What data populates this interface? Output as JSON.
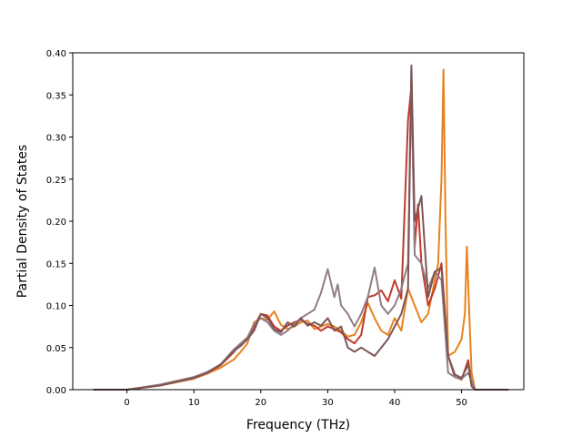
{
  "chart_data": {
    "type": "line",
    "xlabel": "Frequency (THz)",
    "ylabel": "Partial Density of States",
    "xlim": [
      -8.1,
      59.3
    ],
    "ylim": [
      0,
      0.4
    ],
    "xticks": [
      "0",
      "10",
      "20",
      "30",
      "40",
      "50"
    ],
    "xtick_values": [
      0,
      10,
      20,
      30,
      40,
      50
    ],
    "yticks": [
      "0.00",
      "0.05",
      "0.10",
      "0.15",
      "0.20",
      "0.25",
      "0.30",
      "0.35",
      "0.40"
    ],
    "ytick_values": [
      0,
      0.05,
      0.1,
      0.15,
      0.2,
      0.25,
      0.3,
      0.35,
      0.4
    ],
    "grid": false,
    "series": [
      {
        "color": "#e8821e",
        "points": [
          [
            -5,
            0
          ],
          [
            0,
            0
          ],
          [
            5,
            0.005
          ],
          [
            10,
            0.013
          ],
          [
            12,
            0.019
          ],
          [
            14,
            0.026
          ],
          [
            16,
            0.036
          ],
          [
            17,
            0.045
          ],
          [
            18,
            0.055
          ],
          [
            19,
            0.08
          ],
          [
            20,
            0.085
          ],
          [
            21,
            0.083
          ],
          [
            22,
            0.093
          ],
          [
            23,
            0.077
          ],
          [
            24,
            0.072
          ],
          [
            25,
            0.075
          ],
          [
            26,
            0.08
          ],
          [
            27,
            0.082
          ],
          [
            28,
            0.072
          ],
          [
            29,
            0.075
          ],
          [
            30,
            0.078
          ],
          [
            31,
            0.075
          ],
          [
            32,
            0.07
          ],
          [
            33,
            0.063
          ],
          [
            34,
            0.065
          ],
          [
            35,
            0.08
          ],
          [
            36,
            0.103
          ],
          [
            37,
            0.085
          ],
          [
            38,
            0.07
          ],
          [
            39,
            0.065
          ],
          [
            40,
            0.085
          ],
          [
            41,
            0.07
          ],
          [
            42,
            0.12
          ],
          [
            43,
            0.1
          ],
          [
            44,
            0.08
          ],
          [
            45,
            0.09
          ],
          [
            46,
            0.13
          ],
          [
            46.5,
            0.15
          ],
          [
            47,
            0.25
          ],
          [
            47.3,
            0.38
          ],
          [
            47.6,
            0.2
          ],
          [
            48,
            0.04
          ],
          [
            49,
            0.045
          ],
          [
            50,
            0.06
          ],
          [
            50.5,
            0.09
          ],
          [
            50.8,
            0.17
          ],
          [
            51.2,
            0.08
          ],
          [
            51.5,
            0.02
          ],
          [
            52,
            0
          ],
          [
            57,
            0
          ]
        ]
      },
      {
        "color": "#c0392b",
        "points": [
          [
            -5,
            0
          ],
          [
            0,
            0
          ],
          [
            5,
            0.005
          ],
          [
            10,
            0.014
          ],
          [
            12,
            0.02
          ],
          [
            14,
            0.029
          ],
          [
            16,
            0.045
          ],
          [
            17,
            0.055
          ],
          [
            18,
            0.06
          ],
          [
            19,
            0.075
          ],
          [
            20,
            0.09
          ],
          [
            21,
            0.088
          ],
          [
            22,
            0.075
          ],
          [
            23,
            0.07
          ],
          [
            24,
            0.076
          ],
          [
            25,
            0.08
          ],
          [
            26,
            0.083
          ],
          [
            27,
            0.078
          ],
          [
            28,
            0.076
          ],
          [
            29,
            0.07
          ],
          [
            30,
            0.075
          ],
          [
            31,
            0.072
          ],
          [
            32,
            0.068
          ],
          [
            33,
            0.06
          ],
          [
            34,
            0.055
          ],
          [
            35,
            0.065
          ],
          [
            36,
            0.11
          ],
          [
            37,
            0.112
          ],
          [
            38,
            0.118
          ],
          [
            39,
            0.105
          ],
          [
            40,
            0.13
          ],
          [
            41,
            0.108
          ],
          [
            42,
            0.32
          ],
          [
            42.5,
            0.36
          ],
          [
            43,
            0.17
          ],
          [
            43.5,
            0.22
          ],
          [
            44,
            0.15
          ],
          [
            45,
            0.1
          ],
          [
            46,
            0.12
          ],
          [
            47,
            0.15
          ],
          [
            48,
            0.04
          ],
          [
            49,
            0.015
          ],
          [
            50,
            0.012
          ],
          [
            51,
            0.035
          ],
          [
            51.5,
            0.005
          ],
          [
            52,
            0
          ],
          [
            57,
            0
          ]
        ]
      },
      {
        "color": "#8f7d85",
        "points": [
          [
            -5,
            0
          ],
          [
            0,
            0
          ],
          [
            5,
            0.006
          ],
          [
            10,
            0.015
          ],
          [
            12,
            0.021
          ],
          [
            14,
            0.03
          ],
          [
            16,
            0.048
          ],
          [
            17,
            0.055
          ],
          [
            18,
            0.062
          ],
          [
            19,
            0.078
          ],
          [
            20,
            0.085
          ],
          [
            21,
            0.08
          ],
          [
            22,
            0.07
          ],
          [
            23,
            0.065
          ],
          [
            24,
            0.07
          ],
          [
            25,
            0.078
          ],
          [
            26,
            0.085
          ],
          [
            27,
            0.09
          ],
          [
            28,
            0.095
          ],
          [
            29,
            0.115
          ],
          [
            30,
            0.143
          ],
          [
            31,
            0.11
          ],
          [
            31.5,
            0.125
          ],
          [
            32,
            0.1
          ],
          [
            33,
            0.09
          ],
          [
            34,
            0.075
          ],
          [
            35,
            0.09
          ],
          [
            36,
            0.11
          ],
          [
            37,
            0.145
          ],
          [
            38,
            0.1
          ],
          [
            39,
            0.09
          ],
          [
            40,
            0.1
          ],
          [
            41,
            0.12
          ],
          [
            42,
            0.15
          ],
          [
            42.5,
            0.38
          ],
          [
            43,
            0.16
          ],
          [
            44,
            0.15
          ],
          [
            45,
            0.12
          ],
          [
            46,
            0.14
          ],
          [
            47,
            0.13
          ],
          [
            48,
            0.02
          ],
          [
            49,
            0.015
          ],
          [
            50,
            0.013
          ],
          [
            51,
            0.02
          ],
          [
            52,
            0
          ],
          [
            57,
            0
          ]
        ]
      },
      {
        "color": "#7d5656",
        "points": [
          [
            -5,
            0
          ],
          [
            0,
            0
          ],
          [
            5,
            0.005
          ],
          [
            10,
            0.014
          ],
          [
            12,
            0.02
          ],
          [
            14,
            0.03
          ],
          [
            16,
            0.046
          ],
          [
            17,
            0.052
          ],
          [
            18,
            0.06
          ],
          [
            19,
            0.07
          ],
          [
            20,
            0.09
          ],
          [
            21,
            0.085
          ],
          [
            22,
            0.072
          ],
          [
            23,
            0.068
          ],
          [
            24,
            0.08
          ],
          [
            25,
            0.075
          ],
          [
            26,
            0.085
          ],
          [
            27,
            0.076
          ],
          [
            28,
            0.08
          ],
          [
            29,
            0.076
          ],
          [
            30,
            0.085
          ],
          [
            31,
            0.07
          ],
          [
            32,
            0.075
          ],
          [
            33,
            0.05
          ],
          [
            34,
            0.045
          ],
          [
            35,
            0.05
          ],
          [
            36,
            0.045
          ],
          [
            37,
            0.04
          ],
          [
            38,
            0.05
          ],
          [
            39,
            0.06
          ],
          [
            40,
            0.075
          ],
          [
            41,
            0.09
          ],
          [
            42,
            0.12
          ],
          [
            42.5,
            0.385
          ],
          [
            43,
            0.2
          ],
          [
            44,
            0.23
          ],
          [
            45,
            0.11
          ],
          [
            46,
            0.14
          ],
          [
            47,
            0.145
          ],
          [
            48,
            0.04
          ],
          [
            49,
            0.018
          ],
          [
            50,
            0.014
          ],
          [
            51,
            0.03
          ],
          [
            51.5,
            0.004
          ],
          [
            52,
            0
          ],
          [
            57,
            0
          ]
        ]
      }
    ]
  }
}
